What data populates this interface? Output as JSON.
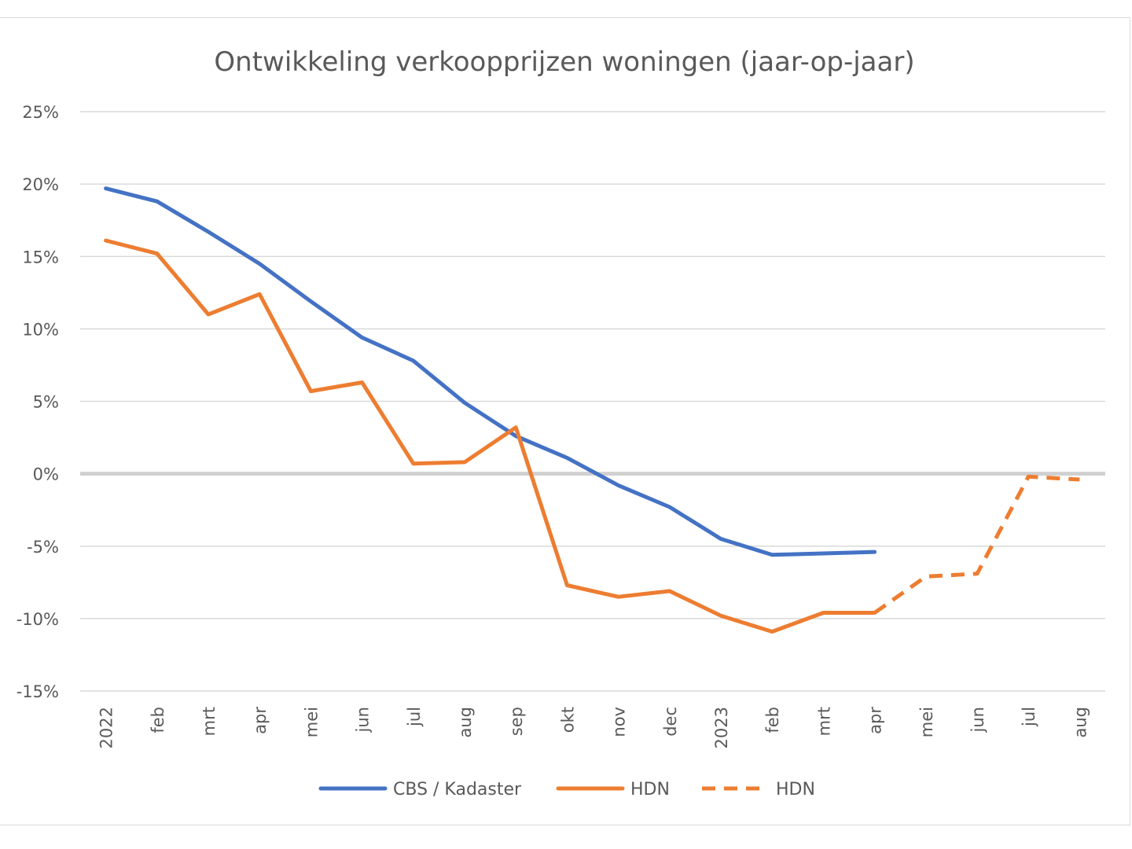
{
  "chart_data": {
    "type": "line",
    "title": "Ontwikkeling verkoopprijzen woningen (jaar-op-jaar)",
    "xlabel": "",
    "ylabel": "",
    "ylim": [
      -15,
      25
    ],
    "ytick_values": [
      25,
      20,
      15,
      10,
      5,
      0,
      -5,
      -10,
      -15
    ],
    "ytick_labels": [
      "25%",
      "20%",
      "15%",
      "10%",
      "5%",
      "0%",
      "-5%",
      "-10%",
      "-15%"
    ],
    "categories": [
      "2022",
      "feb",
      "mrt",
      "apr",
      "mei",
      "jun",
      "jul",
      "aug",
      "sep",
      "okt",
      "nov",
      "dec",
      "2023",
      "feb",
      "mrt",
      "apr",
      "mei",
      "jun",
      "jul",
      "aug"
    ],
    "grid": true,
    "legend_position": "bottom",
    "series": [
      {
        "name": "CBS / Kadaster",
        "color": "#4472c4",
        "dash": "solid",
        "values": [
          19.7,
          18.8,
          16.7,
          14.5,
          11.9,
          9.4,
          7.8,
          4.9,
          2.6,
          1.1,
          -0.8,
          -2.3,
          -4.5,
          -5.6,
          -5.5,
          -5.4,
          null,
          null,
          null,
          null
        ]
      },
      {
        "name": "HDN",
        "color": "#ed7d31",
        "dash": "solid",
        "values": [
          16.1,
          15.2,
          11.0,
          12.4,
          5.7,
          6.3,
          0.7,
          0.8,
          3.2,
          -7.7,
          -8.5,
          -8.1,
          -9.8,
          -10.9,
          -9.6,
          -9.6,
          null,
          null,
          null,
          null
        ]
      },
      {
        "name": "HDN",
        "color": "#ed7d31",
        "dash": "dashed",
        "values": [
          null,
          null,
          null,
          null,
          null,
          null,
          null,
          null,
          null,
          null,
          null,
          null,
          null,
          null,
          null,
          -9.6,
          -7.1,
          -6.9,
          -0.2,
          -0.4
        ]
      }
    ]
  }
}
